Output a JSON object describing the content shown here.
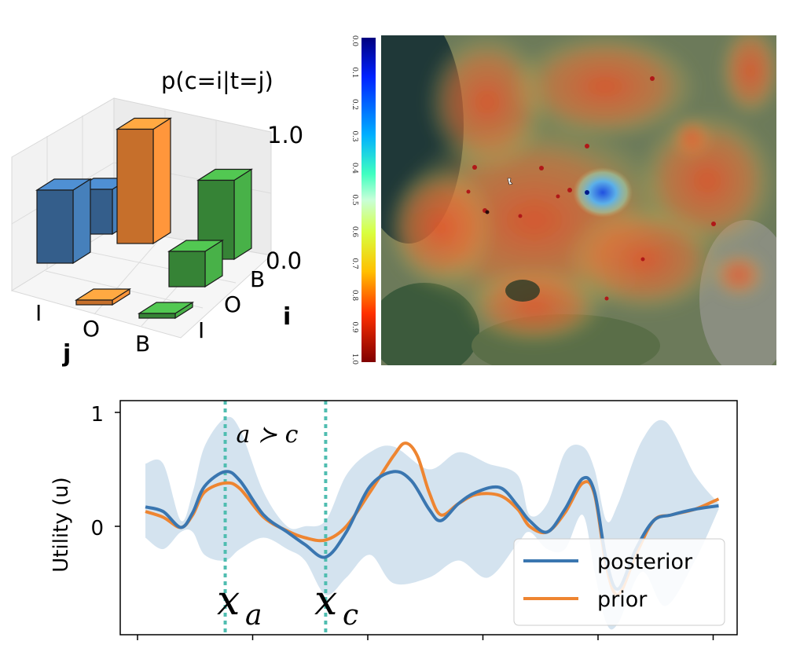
{
  "chart_data": [
    {
      "type": "bar",
      "title": "p(c=i|t=j)",
      "xlabel": "j",
      "ylabel": "i",
      "x_categories": [
        "I",
        "O",
        "B"
      ],
      "y_categories": [
        "I",
        "O",
        "B"
      ],
      "zticks": [
        "1.0",
        "0.0"
      ],
      "zlim": [
        0,
        1
      ],
      "bars": [
        {
          "j": "I",
          "i": "I",
          "value": 0.62,
          "color": "#3d6fa3"
        },
        {
          "j": "I",
          "i": "O",
          "value": 0.38,
          "color": "#3d6fa3"
        },
        {
          "j": "O",
          "i": "I",
          "value": 0.03,
          "color": "#e98233"
        },
        {
          "j": "O",
          "i": "B",
          "value": 0.97,
          "color": "#e98233"
        },
        {
          "j": "B",
          "i": "I",
          "value": 0.03,
          "color": "#3f9a3f"
        },
        {
          "j": "B",
          "i": "O",
          "value": 0.3,
          "color": "#3f9a3f"
        },
        {
          "j": "B",
          "i": "B",
          "value": 0.67,
          "color": "#3f9a3f"
        }
      ]
    },
    {
      "type": "heatmap",
      "colorbar_ticks": [
        "0.0",
        "0.1",
        "0.2",
        "0.3",
        "0.4",
        "0.5",
        "0.6",
        "0.7",
        "0.8",
        "0.9",
        "1.0"
      ],
      "colorbar_range": [
        0,
        1
      ]
    },
    {
      "type": "line",
      "ylabel": "Utility (u)",
      "yticks": [
        "1",
        "0"
      ],
      "ylim": [
        -0.95,
        1.1
      ],
      "xlim": [
        0,
        1
      ],
      "annotation": "a ≻ c",
      "markers": [
        {
          "label": "x",
          "sub": "a",
          "x": 0.155
        },
        {
          "label": "x",
          "sub": "c",
          "x": 0.325
        }
      ],
      "series": [
        {
          "name": "posterior",
          "color": "#3a76b0",
          "x": [
            0.02,
            0.05,
            0.08,
            0.1,
            0.12,
            0.155,
            0.18,
            0.22,
            0.26,
            0.29,
            0.325,
            0.36,
            0.4,
            0.44,
            0.47,
            0.5,
            0.52,
            0.55,
            0.58,
            0.62,
            0.65,
            0.67,
            0.7,
            0.73,
            0.76,
            0.78,
            0.8,
            0.82,
            0.85,
            0.88,
            0.91,
            0.95,
            0.99
          ],
          "values": [
            0.17,
            0.13,
            -0.01,
            0.12,
            0.35,
            0.48,
            0.4,
            0.1,
            -0.05,
            -0.16,
            -0.27,
            -0.05,
            0.35,
            0.48,
            0.4,
            0.15,
            0.05,
            0.2,
            0.3,
            0.34,
            0.18,
            0.05,
            -0.05,
            0.15,
            0.42,
            0.3,
            -0.3,
            -0.55,
            -0.2,
            0.05,
            0.1,
            0.15,
            0.18
          ]
        },
        {
          "name": "prior",
          "color": "#ee8531",
          "x": [
            0.02,
            0.05,
            0.08,
            0.1,
            0.12,
            0.155,
            0.18,
            0.22,
            0.26,
            0.29,
            0.325,
            0.36,
            0.4,
            0.44,
            0.46,
            0.48,
            0.5,
            0.52,
            0.55,
            0.58,
            0.62,
            0.65,
            0.67,
            0.7,
            0.73,
            0.76,
            0.78,
            0.8,
            0.82,
            0.85,
            0.88,
            0.91,
            0.95,
            0.99
          ],
          "values": [
            0.13,
            0.08,
            -0.01,
            0.1,
            0.3,
            0.38,
            0.33,
            0.08,
            -0.04,
            -0.1,
            -0.12,
            0.0,
            0.3,
            0.62,
            0.73,
            0.62,
            0.3,
            0.1,
            0.2,
            0.28,
            0.27,
            0.15,
            0.0,
            -0.05,
            0.12,
            0.38,
            0.28,
            -0.35,
            -0.6,
            -0.25,
            0.05,
            0.1,
            0.15,
            0.24
          ]
        }
      ],
      "band": {
        "x": [
          0.02,
          0.05,
          0.08,
          0.1,
          0.12,
          0.155,
          0.18,
          0.22,
          0.26,
          0.29,
          0.325,
          0.36,
          0.4,
          0.44,
          0.5,
          0.55,
          0.6,
          0.65,
          0.67,
          0.7,
          0.73,
          0.76,
          0.78,
          0.8,
          0.82,
          0.86,
          0.9,
          0.95,
          0.99
        ],
        "upper": [
          0.55,
          0.55,
          0.05,
          0.3,
          0.7,
          0.95,
          0.85,
          0.3,
          0.0,
          0.0,
          0.05,
          0.45,
          0.65,
          0.7,
          0.5,
          0.65,
          0.55,
          0.45,
          0.1,
          0.2,
          0.65,
          0.7,
          0.5,
          0.05,
          0.2,
          0.75,
          0.92,
          0.45,
          0.2
        ],
        "lower": [
          -0.1,
          -0.2,
          -0.05,
          -0.05,
          -0.25,
          -0.3,
          -0.2,
          -0.1,
          -0.2,
          -0.3,
          -0.6,
          -0.45,
          -0.25,
          -0.5,
          -0.45,
          -0.3,
          -0.45,
          -0.15,
          -0.05,
          -0.2,
          -0.2,
          0.1,
          -0.4,
          -0.85,
          -0.85,
          -0.4,
          -0.7,
          -0.3,
          0.15
        ]
      }
    }
  ]
}
